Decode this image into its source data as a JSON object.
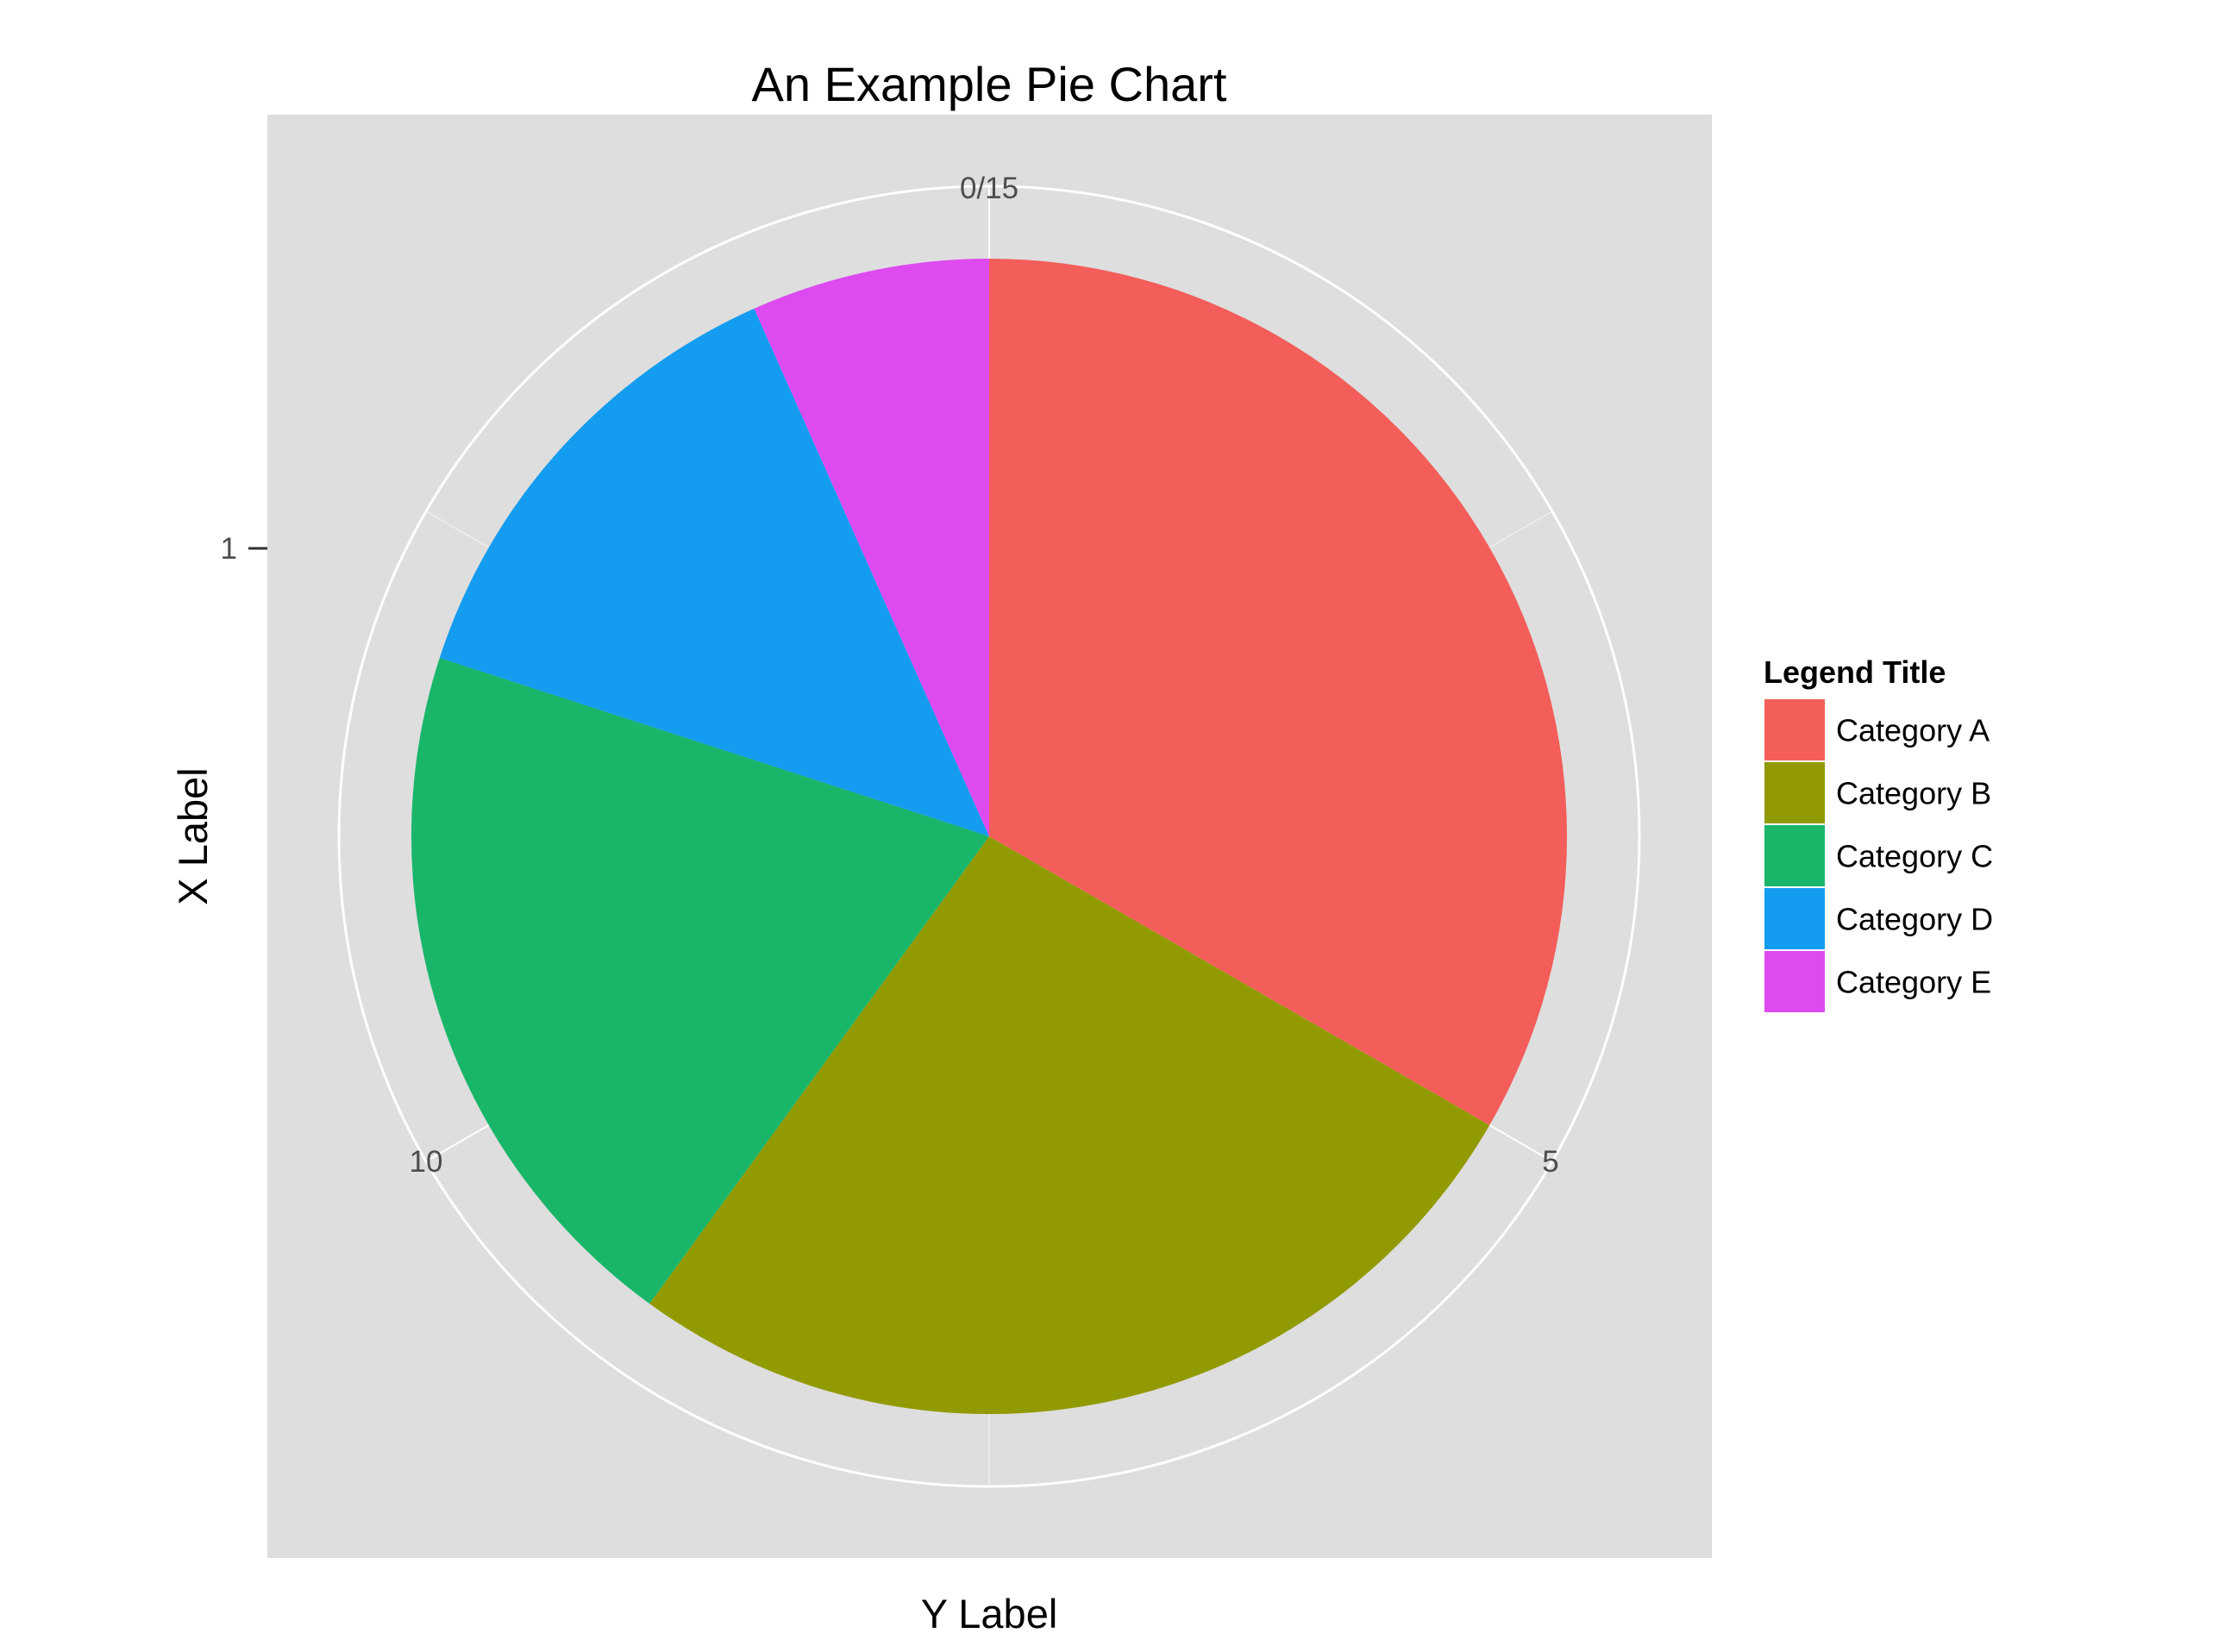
{
  "chart_data": {
    "type": "pie",
    "title": "An Example Pie Chart",
    "xlabel": "Y Label",
    "ylabel": "X Label",
    "x_tick": "1",
    "angular_ticks": [
      {
        "value": 0,
        "label": "0/15"
      },
      {
        "value": 5,
        "label": "5"
      },
      {
        "value": 10,
        "label": "10"
      }
    ],
    "total": 15,
    "slices": [
      {
        "label": "Category A",
        "value": 5,
        "color": "#F35E5A"
      },
      {
        "label": "Category B",
        "value": 4,
        "color": "#929A02"
      },
      {
        "label": "Category C",
        "value": 3,
        "color": "#19B66A"
      },
      {
        "label": "Category D",
        "value": 2,
        "color": "#149CF0"
      },
      {
        "label": "Category E",
        "value": 1,
        "color": "#DD4AF0"
      }
    ],
    "legend": {
      "title": "Legend Title",
      "placement": "right"
    },
    "panel_background": "#DEDEDE",
    "grid_color": "#FFFFFF",
    "grid": true
  }
}
